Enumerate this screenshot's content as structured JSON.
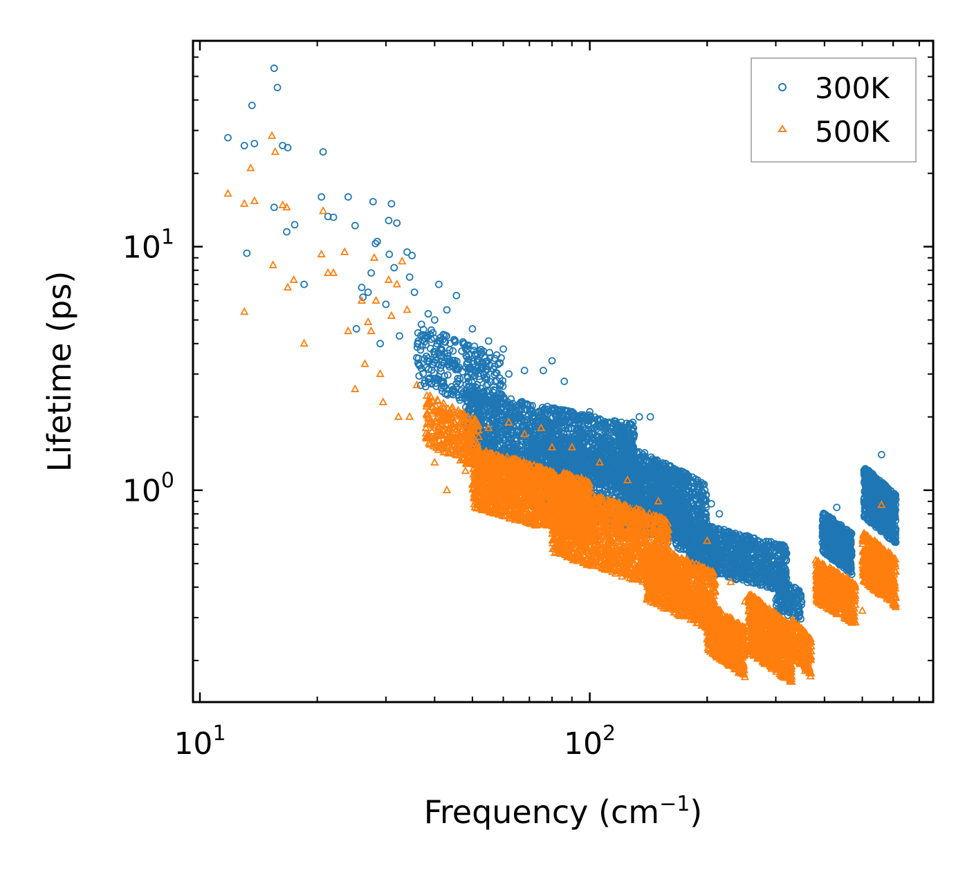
{
  "chart_data": {
    "type": "scatter",
    "xscale": "log",
    "yscale": "log",
    "xlim": [
      9.6,
      760
    ],
    "ylim": [
      0.135,
      70
    ],
    "xlabel": "Frequency (cm",
    "xlabel_sup": "−1",
    "xlabel_tail": ")",
    "ylabel": "Lifetime (ps)",
    "xticks": [
      {
        "value": 10,
        "base": "10",
        "exp": "1"
      },
      {
        "value": 100,
        "base": "10",
        "exp": "2"
      }
    ],
    "yticks": [
      {
        "value": 1,
        "base": "10",
        "exp": "0"
      },
      {
        "value": 10,
        "base": "10",
        "exp": "1"
      }
    ],
    "legend": {
      "position": "top-right",
      "entries": [
        {
          "label": "300K",
          "marker": "circle",
          "color": "#1f77b4"
        },
        {
          "label": "500K",
          "marker": "triangle",
          "color": "#ff7f0e"
        }
      ]
    },
    "series": [
      {
        "name": "300K",
        "color": "#1f77b4",
        "marker": "circle",
        "sparse_points": [
          [
            11.8,
            28
          ],
          [
            13.0,
            26
          ],
          [
            13.2,
            9.4
          ],
          [
            13.6,
            38
          ],
          [
            13.8,
            26.5
          ],
          [
            15.5,
            54
          ],
          [
            15.8,
            45
          ],
          [
            15.5,
            14.5
          ],
          [
            16.3,
            26
          ],
          [
            16.8,
            25.5
          ],
          [
            16.7,
            11.5
          ],
          [
            17.5,
            12.3
          ],
          [
            18.5,
            7.0
          ],
          [
            20.5,
            16
          ],
          [
            20.7,
            24.5
          ],
          [
            21.3,
            13.3
          ],
          [
            22,
            13.2
          ],
          [
            24,
            16
          ],
          [
            25,
            12.2
          ],
          [
            25.2,
            4.6
          ],
          [
            26,
            6.8
          ],
          [
            26.2,
            6.2
          ],
          [
            27,
            6.5
          ],
          [
            27.5,
            7.8
          ],
          [
            27.8,
            15.3
          ],
          [
            28.2,
            10.3
          ],
          [
            28.5,
            10.5
          ],
          [
            29,
            4.0
          ],
          [
            30,
            5.8
          ],
          [
            30.5,
            12.8
          ],
          [
            30.6,
            9.3
          ],
          [
            31,
            15
          ],
          [
            31.5,
            8.2
          ],
          [
            32,
            12.5
          ],
          [
            32.5,
            4.3
          ],
          [
            34,
            9.5
          ],
          [
            34.5,
            7.5
          ],
          [
            35,
            9.2
          ],
          [
            35.5,
            6.5
          ],
          [
            36,
            3.5
          ],
          [
            37,
            4.8
          ],
          [
            38.5,
            5.3
          ],
          [
            40,
            5.0
          ],
          [
            41,
            7.0
          ],
          [
            43,
            5.5
          ],
          [
            45.5,
            6.3
          ],
          [
            50,
            4.6
          ],
          [
            55,
            4.1
          ],
          [
            60,
            3.8
          ],
          [
            62,
            3.0
          ],
          [
            68,
            3.1
          ],
          [
            76,
            3.1
          ],
          [
            80,
            3.4
          ],
          [
            86,
            2.8
          ],
          [
            100,
            2.1
          ],
          [
            109,
            1.8
          ],
          [
            129,
            1.9
          ],
          [
            134,
            2.0
          ],
          [
            143,
            2.0
          ],
          [
            178,
            1.0
          ],
          [
            205,
            0.88
          ],
          [
            215,
            0.8
          ],
          [
            230,
            0.65
          ],
          [
            250,
            0.6
          ],
          [
            270,
            0.55
          ],
          [
            305,
            0.3
          ],
          [
            322,
            0.28
          ],
          [
            430,
            0.85
          ],
          [
            560,
            1.4
          ]
        ],
        "dense_bands": [
          {
            "x": [
              36,
              60
            ],
            "y": [
              2.0,
              4.8
            ],
            "n": 320
          },
          {
            "x": [
              48,
              130
            ],
            "y": [
              1.0,
              2.6
            ],
            "n": 1500
          },
          {
            "x": [
              70,
              180
            ],
            "y": [
              0.6,
              1.7
            ],
            "n": 1300
          },
          {
            "x": [
              120,
              200
            ],
            "y": [
              0.5,
              1.6
            ],
            "n": 900
          },
          {
            "x": [
              180,
              320
            ],
            "y": [
              0.38,
              0.75
            ],
            "n": 900
          },
          {
            "x": [
              300,
              350
            ],
            "y": [
              0.28,
              0.45
            ],
            "n": 160
          },
          {
            "x": [
              395,
              470
            ],
            "y": [
              0.45,
              0.82
            ],
            "n": 500
          },
          {
            "x": [
              505,
              610
            ],
            "y": [
              0.6,
              1.25
            ],
            "n": 600
          }
        ]
      },
      {
        "name": "500K",
        "color": "#ff7f0e",
        "marker": "triangle",
        "sparse_points": [
          [
            11.8,
            16.5
          ],
          [
            13.0,
            15
          ],
          [
            13.0,
            5.4
          ],
          [
            13.5,
            21
          ],
          [
            13.8,
            15.4
          ],
          [
            15.3,
            28.5
          ],
          [
            15.6,
            24.5
          ],
          [
            15.4,
            8.4
          ],
          [
            16.3,
            14.8
          ],
          [
            16.7,
            14.5
          ],
          [
            16.8,
            6.8
          ],
          [
            17.4,
            7.3
          ],
          [
            18.5,
            4.0
          ],
          [
            20.5,
            9.3
          ],
          [
            20.7,
            14
          ],
          [
            21.3,
            7.8
          ],
          [
            22,
            7.8
          ],
          [
            23.5,
            9.5
          ],
          [
            24,
            4.5
          ],
          [
            25,
            2.6
          ],
          [
            26,
            6.0
          ],
          [
            26.5,
            3.3
          ],
          [
            27,
            4.9
          ],
          [
            27.5,
            4.5
          ],
          [
            28,
            9.0
          ],
          [
            28.3,
            6.0
          ],
          [
            29,
            3.0
          ],
          [
            29.5,
            2.3
          ],
          [
            30.5,
            7.3
          ],
          [
            31,
            5.2
          ],
          [
            32,
            7.0
          ],
          [
            32.3,
            2.0
          ],
          [
            33,
            8.7
          ],
          [
            34,
            5.5
          ],
          [
            34.5,
            2.0
          ],
          [
            36,
            2.7
          ],
          [
            38,
            1.8
          ],
          [
            40,
            1.3
          ],
          [
            43,
            1.0
          ],
          [
            48,
            1.2
          ],
          [
            55,
            1.8
          ],
          [
            62,
            1.9
          ],
          [
            68,
            1.7
          ],
          [
            75,
            1.8
          ],
          [
            80,
            1.5
          ],
          [
            90,
            1.5
          ],
          [
            106,
            1.3
          ],
          [
            125,
            1.1
          ],
          [
            150,
            0.9
          ],
          [
            200,
            0.62
          ],
          [
            230,
            0.42
          ],
          [
            250,
            0.35
          ],
          [
            270,
            0.3
          ],
          [
            323,
            0.22
          ],
          [
            500,
            0.32
          ],
          [
            560,
            0.87
          ]
        ],
        "dense_bands": [
          {
            "x": [
              38,
              52
            ],
            "y": [
              1.2,
              2.5
            ],
            "n": 300
          },
          {
            "x": [
              50,
              100
            ],
            "y": [
              0.62,
              1.5
            ],
            "n": 1500
          },
          {
            "x": [
              80,
              160
            ],
            "y": [
              0.38,
              1.1
            ],
            "n": 1400
          },
          {
            "x": [
              140,
              210
            ],
            "y": [
              0.26,
              0.62
            ],
            "n": 900
          },
          {
            "x": [
              200,
              250
            ],
            "y": [
              0.17,
              0.35
            ],
            "n": 600
          },
          {
            "x": [
              255,
              330
            ],
            "y": [
              0.16,
              0.38
            ],
            "n": 700
          },
          {
            "x": [
              330,
              370
            ],
            "y": [
              0.17,
              0.3
            ],
            "n": 200
          },
          {
            "x": [
              380,
              480
            ],
            "y": [
              0.28,
              0.52
            ],
            "n": 500
          },
          {
            "x": [
              500,
              610
            ],
            "y": [
              0.33,
              0.68
            ],
            "n": 550
          }
        ]
      }
    ]
  }
}
